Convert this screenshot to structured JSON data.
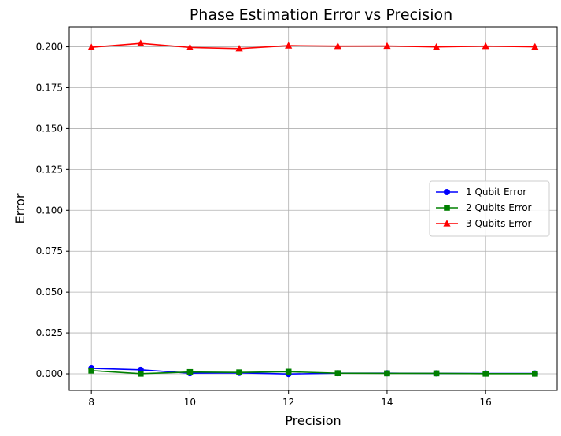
{
  "chart_data": {
    "type": "line",
    "title": "Phase Estimation Error vs Precision",
    "xlabel": "Precision",
    "ylabel": "Error",
    "x": [
      8,
      9,
      10,
      11,
      12,
      13,
      14,
      15,
      16,
      17
    ],
    "xlim": [
      7.55,
      17.45
    ],
    "ylim": [
      -0.0101,
      0.2123
    ],
    "xticks": [
      8,
      10,
      12,
      14,
      16
    ],
    "yticks": [
      0.0,
      0.025,
      0.05,
      0.075,
      0.1,
      0.125,
      0.15,
      0.175,
      0.2
    ],
    "ytick_labels": [
      "0.000",
      "0.025",
      "0.050",
      "0.075",
      "0.100",
      "0.125",
      "0.150",
      "0.175",
      "0.200"
    ],
    "grid": true,
    "legend_position": "center-right",
    "series": [
      {
        "name": "1 Qubit Error",
        "color": "#0000ff",
        "marker": "circle",
        "values": [
          0.0034,
          0.0025,
          0.0004,
          0.0006,
          -0.0001,
          0.0004,
          0.0004,
          0.0003,
          0.0002,
          0.0002
        ]
      },
      {
        "name": "2 Qubits Error",
        "color": "#008000",
        "marker": "square",
        "values": [
          0.002,
          0.0001,
          0.0011,
          0.0009,
          0.0013,
          0.0004,
          0.0003,
          0.0003,
          0.0001,
          0.0001
        ]
      },
      {
        "name": "3 Qubits Error",
        "color": "#ff0000",
        "marker": "triangle",
        "values": [
          0.1997,
          0.2021,
          0.1996,
          0.1989,
          0.2007,
          0.2004,
          0.2005,
          0.1999,
          0.2004,
          0.2
        ]
      }
    ]
  }
}
